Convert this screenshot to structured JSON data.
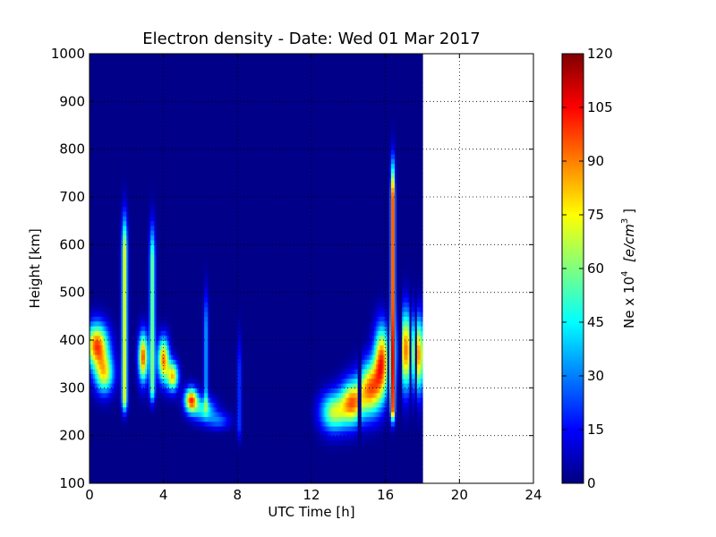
{
  "chart_data": {
    "type": "heatmap",
    "title": "Electron density - Date: Wed 01 Mar 2017",
    "xlabel": "UTC Time [h]",
    "ylabel": "Height [km]",
    "xlim": [
      0,
      24
    ],
    "ylim": [
      100,
      1000
    ],
    "x_ticks": [
      "0",
      "4",
      "8",
      "12",
      "16",
      "20",
      "24"
    ],
    "y_ticks": [
      "100",
      "200",
      "300",
      "400",
      "500",
      "600",
      "700",
      "800",
      "900",
      "1000"
    ],
    "grid": true,
    "data_coverage_hours": [
      0,
      18
    ],
    "colorbar": {
      "label_text": "Ne x 10",
      "label_superscript": "4",
      "label_units_text": "[e/cm",
      "label_units_superscript": "3",
      "label_units_close": "]",
      "range": [
        0,
        120
      ],
      "ticks": [
        "0",
        "15",
        "30",
        "45",
        "60",
        "75",
        "90",
        "105",
        "120"
      ],
      "colormap": "jet",
      "stops": [
        "#00007f",
        "#0000ff",
        "#007fff",
        "#00ffff",
        "#7fff7f",
        "#ffff00",
        "#ff7f00",
        "#ff0000",
        "#7f0000"
      ]
    },
    "background_value": 1,
    "features": [
      {
        "kind": "blob",
        "t": 0.4,
        "h": 390,
        "dt": 0.6,
        "dh": 45,
        "value": 95
      },
      {
        "kind": "blob",
        "t": 0.8,
        "h": 330,
        "dt": 0.5,
        "dh": 40,
        "value": 70
      },
      {
        "kind": "column",
        "t": 1.9,
        "h0": 280,
        "h1": 580,
        "dt": 0.15,
        "value": 75
      },
      {
        "kind": "blob",
        "t": 2.9,
        "h": 365,
        "dt": 0.25,
        "dh": 50,
        "value": 95
      },
      {
        "kind": "column",
        "t": 3.4,
        "h0": 300,
        "h1": 560,
        "dt": 0.15,
        "value": 60
      },
      {
        "kind": "blob",
        "t": 4.0,
        "h": 360,
        "dt": 0.3,
        "dh": 45,
        "value": 90
      },
      {
        "kind": "blob",
        "t": 4.5,
        "h": 325,
        "dt": 0.3,
        "dh": 30,
        "value": 80
      },
      {
        "kind": "blob",
        "t": 5.5,
        "h": 275,
        "dt": 0.35,
        "dh": 25,
        "value": 95
      },
      {
        "kind": "blob",
        "t": 6.2,
        "h": 255,
        "dt": 0.6,
        "dh": 25,
        "value": 45
      },
      {
        "kind": "column",
        "t": 6.3,
        "h0": 280,
        "h1": 420,
        "dt": 0.12,
        "value": 35
      },
      {
        "kind": "blob",
        "t": 7.0,
        "h": 232,
        "dt": 0.6,
        "dh": 18,
        "value": 25
      },
      {
        "kind": "column",
        "t": 8.1,
        "h0": 220,
        "h1": 330,
        "dt": 0.12,
        "value": 22
      },
      {
        "kind": "blob",
        "t": 13.2,
        "h": 250,
        "dt": 0.7,
        "dh": 40,
        "value": 65
      },
      {
        "kind": "blob",
        "t": 14.2,
        "h": 270,
        "dt": 0.6,
        "dh": 45,
        "value": 85
      },
      {
        "kind": "blob",
        "t": 15.2,
        "h": 300,
        "dt": 0.6,
        "dh": 55,
        "value": 88
      },
      {
        "kind": "blob",
        "t": 15.8,
        "h": 360,
        "dt": 0.4,
        "dh": 70,
        "value": 92
      },
      {
        "kind": "column",
        "t": 16.4,
        "h0": 260,
        "h1": 690,
        "dt": 0.12,
        "value": 110
      },
      {
        "kind": "blob",
        "t": 17.1,
        "h": 380,
        "dt": 0.35,
        "dh": 80,
        "value": 90
      },
      {
        "kind": "blob",
        "t": 17.8,
        "h": 370,
        "dt": 0.3,
        "dh": 75,
        "value": 85
      }
    ],
    "gaps_hours": [
      [
        11.7,
        11.85
      ],
      [
        14.5,
        14.68
      ],
      [
        16.05,
        16.22
      ],
      [
        16.7,
        16.85
      ],
      [
        17.25,
        17.42
      ],
      [
        17.6,
        17.68
      ]
    ]
  }
}
